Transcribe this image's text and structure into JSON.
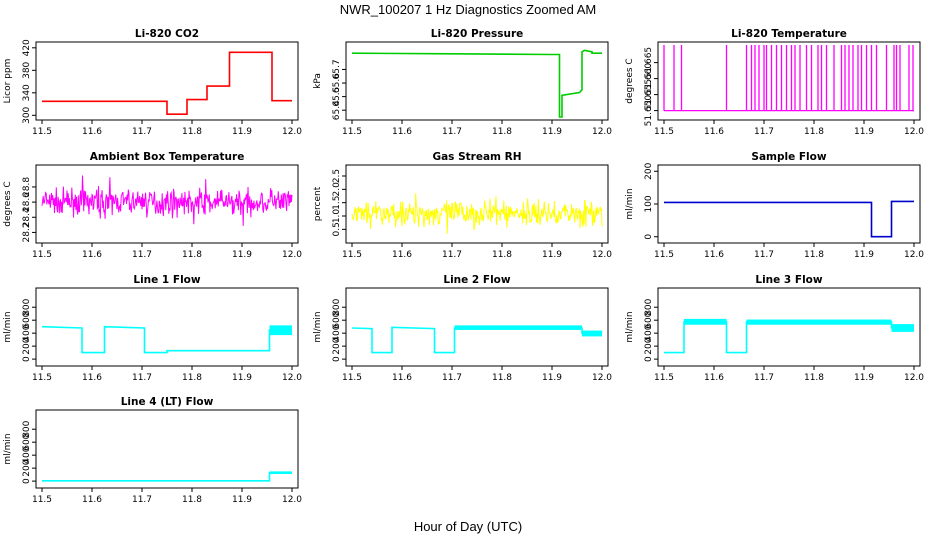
{
  "figure": {
    "title": "NWR_100207  1 Hz Diagnostics Zoomed AM",
    "xlabel": "Hour of Day (UTC)"
  },
  "chart_data": [
    {
      "type": "line",
      "title": "Li-820 CO2",
      "ylabel": "Licor ppm",
      "color": "#ff0000",
      "xlim": [
        11.5,
        12.0
      ],
      "x_ticks": [
        "11.5",
        "11.6",
        "11.7",
        "11.8",
        "11.9",
        "12.0"
      ],
      "ylim": [
        297,
        425
      ],
      "y_ticks": [
        "300",
        "340",
        "380",
        "420"
      ],
      "series": [
        {
          "x": [
            11.5,
            11.75,
            11.75,
            11.79,
            11.79,
            11.83,
            11.83,
            11.875,
            11.875,
            11.96,
            11.96,
            12.0
          ],
          "y": [
            325,
            325,
            302,
            302,
            328,
            328,
            352,
            352,
            412,
            412,
            326,
            326
          ]
        }
      ]
    },
    {
      "type": "line",
      "title": "Li-820 Pressure",
      "ylabel": "kPa",
      "color": "#00cc00",
      "xlim": [
        11.5,
        12.0
      ],
      "x_ticks": [
        "11.5",
        "11.6",
        "11.7",
        "11.8",
        "11.9",
        "12.0"
      ],
      "ylim": [
        65.35,
        65.88
      ],
      "y_ticks": [
        "65.4",
        "65.5",
        "65.6",
        "65.7"
      ],
      "series": [
        {
          "x": [
            11.5,
            11.7,
            11.9,
            11.915,
            11.915,
            11.92,
            11.92,
            11.955,
            11.955,
            11.96,
            11.96,
            11.965,
            11.965,
            11.98,
            11.98,
            12.0
          ],
          "y": [
            65.82,
            65.815,
            65.81,
            65.81,
            65.35,
            65.35,
            65.51,
            65.53,
            65.53,
            65.55,
            65.83,
            65.84,
            65.84,
            65.83,
            65.82,
            65.82
          ]
        }
      ]
    },
    {
      "type": "line",
      "title": "Li-820 Temperature",
      "ylabel": "degrees C",
      "color": "#ff00ff",
      "xlim": [
        11.5,
        12.0
      ],
      "x_ticks": [
        "11.5",
        "11.6",
        "11.7",
        "11.8",
        "11.9",
        "12.0"
      ],
      "ylim": [
        51.648,
        51.6705
      ],
      "y_ticks": [
        "51.650",
        "51.655",
        "51.660",
        "51.665"
      ],
      "baseline": 51.65,
      "spike_top": 51.6705,
      "spikes": [
        11.5,
        11.52,
        11.535,
        11.625,
        11.665,
        11.675,
        11.682,
        11.69,
        11.7,
        11.705,
        11.715,
        11.725,
        11.735,
        11.745,
        11.755,
        11.762,
        11.772,
        11.785,
        11.795,
        11.808,
        11.815,
        11.825,
        11.84,
        11.855,
        11.862,
        11.87,
        11.878,
        11.888,
        11.895,
        11.905,
        11.915,
        11.925,
        11.945,
        11.96,
        11.965,
        11.972,
        11.99,
        11.998
      ]
    },
    {
      "type": "line",
      "title": "Ambient Box Temperature",
      "ylabel": "degrees C",
      "color": "#ff00ff",
      "xlim": [
        11.5,
        12.0
      ],
      "x_ticks": [
        "11.5",
        "11.6",
        "11.7",
        "11.8",
        "11.9",
        "12.0"
      ],
      "ylim": [
        28.1,
        29.05
      ],
      "y_ticks": [
        "28.2",
        "28.4",
        "28.6",
        "28.8"
      ],
      "noise": {
        "center": 28.6,
        "amplitude": 0.25
      }
    },
    {
      "type": "line",
      "title": "Gas Stream RH",
      "ylabel": "percent",
      "color": "#ffff00",
      "xlim": [
        11.5,
        12.0
      ],
      "x_ticks": [
        "11.5",
        "11.6",
        "11.7",
        "11.8",
        "11.9",
        "12.0"
      ],
      "ylim": [
        0.1,
        2.8
      ],
      "y_ticks": [
        "0.5",
        "1.0",
        "1.5",
        "2.0",
        "2.5"
      ],
      "noise": {
        "center": 1.1,
        "amplitude": 0.7
      }
    },
    {
      "type": "line",
      "title": "Sample Flow",
      "ylabel": "ml/min",
      "color": "#0000cc",
      "xlim": [
        11.5,
        12.0
      ],
      "x_ticks": [
        "11.5",
        "11.6",
        "11.7",
        "11.8",
        "11.9",
        "12.0"
      ],
      "ylim": [
        -10,
        210
      ],
      "y_ticks": [
        "0",
        "100",
        "200"
      ],
      "series": [
        {
          "x": [
            11.5,
            11.915,
            11.915,
            11.955,
            11.955,
            12.0
          ],
          "y": [
            105,
            105,
            0,
            0,
            108,
            108
          ]
        }
      ]
    },
    {
      "type": "line",
      "title": "Line 1 Flow",
      "ylabel": "ml/min",
      "color": "#00ffff",
      "xlim": [
        11.5,
        12.0
      ],
      "x_ticks": [
        "11.5",
        "11.6",
        "11.7",
        "11.8",
        "11.9",
        "12.0"
      ],
      "ylim": [
        -60,
        1050
      ],
      "y_ticks": [
        "0",
        "200",
        "400",
        "600",
        "800"
      ],
      "series": [
        {
          "x": [
            11.5,
            11.58,
            11.58,
            11.625,
            11.625,
            11.705,
            11.705,
            11.75,
            11.75,
            11.955,
            11.955,
            12.0
          ],
          "y": [
            500,
            480,
            100,
            100,
            500,
            480,
            100,
            100,
            130,
            130,
            450,
            450
          ]
        }
      ],
      "bands": [
        {
          "x": [
            11.955,
            12.0
          ],
          "y": [
            370,
            520
          ]
        }
      ]
    },
    {
      "type": "line",
      "title": "Line 2 Flow",
      "ylabel": "ml/min",
      "color": "#00ffff",
      "xlim": [
        11.5,
        12.0
      ],
      "x_ticks": [
        "11.5",
        "11.6",
        "11.7",
        "11.8",
        "11.9",
        "12.0"
      ],
      "ylim": [
        -60,
        1050
      ],
      "y_ticks": [
        "0",
        "200",
        "400",
        "600",
        "800"
      ],
      "series": [
        {
          "x": [
            11.5,
            11.54,
            11.54,
            11.58,
            11.58,
            11.665,
            11.665,
            11.705,
            11.705,
            11.96,
            11.96,
            12.0
          ],
          "y": [
            480,
            470,
            100,
            100,
            490,
            470,
            100,
            100,
            480,
            480,
            400,
            400
          ]
        }
      ],
      "bands": [
        {
          "x": [
            11.705,
            11.96
          ],
          "y": [
            450,
            520
          ]
        },
        {
          "x": [
            11.96,
            12.0
          ],
          "y": [
            350,
            440
          ]
        }
      ]
    },
    {
      "type": "line",
      "title": "Line 3 Flow",
      "ylabel": "ml/min",
      "color": "#00ffff",
      "xlim": [
        11.5,
        12.0
      ],
      "x_ticks": [
        "11.5",
        "11.6",
        "11.7",
        "11.8",
        "11.9",
        "12.0"
      ],
      "ylim": [
        -60,
        1050
      ],
      "y_ticks": [
        "0",
        "200",
        "400",
        "600",
        "800"
      ],
      "series": [
        {
          "x": [
            11.5,
            11.54,
            11.54,
            11.625,
            11.625,
            11.665,
            11.665,
            11.955,
            11.955,
            12.0
          ],
          "y": [
            100,
            100,
            580,
            580,
            100,
            100,
            570,
            570,
            480,
            480
          ]
        }
      ],
      "bands": [
        {
          "x": [
            11.54,
            11.625
          ],
          "y": [
            530,
            620
          ]
        },
        {
          "x": [
            11.665,
            11.955
          ],
          "y": [
            530,
            610
          ]
        },
        {
          "x": [
            11.955,
            12.0
          ],
          "y": [
            420,
            540
          ]
        }
      ]
    },
    {
      "type": "line",
      "title": "Line 4 (LT) Flow",
      "ylabel": "ml/min",
      "color": "#00ffff",
      "xlim": [
        11.5,
        12.0
      ],
      "x_ticks": [
        "11.5",
        "11.6",
        "11.7",
        "11.8",
        "11.9",
        "12.0"
      ],
      "ylim": [
        -60,
        1050
      ],
      "y_ticks": [
        "0",
        "200",
        "400",
        "600",
        "800"
      ],
      "series": [
        {
          "x": [
            11.5,
            11.955,
            11.955,
            12.0
          ],
          "y": [
            5,
            5,
            130,
            130
          ]
        }
      ],
      "bands": [
        {
          "x": [
            11.955,
            12.0
          ],
          "y": [
            110,
            150
          ]
        }
      ]
    }
  ]
}
